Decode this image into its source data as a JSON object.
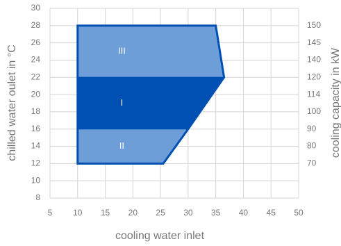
{
  "chart_data": {
    "type": "area",
    "xlabel": "cooling water inlet",
    "ylabel": "chilled water oulet in °C",
    "y2label": "cooling capacity in kW",
    "xlim": [
      5,
      50
    ],
    "xticks": [
      5,
      10,
      15,
      20,
      25,
      30,
      35,
      40,
      45,
      50
    ],
    "ylim": [
      8,
      30
    ],
    "yticks": [
      8,
      10,
      12,
      14,
      16,
      18,
      20,
      22,
      24,
      26,
      28,
      30
    ],
    "y2ticks": [
      70,
      80,
      90,
      100,
      114,
      120,
      140,
      145,
      150
    ],
    "y2tick_y": [
      12,
      14,
      16,
      18,
      20,
      22,
      24,
      26,
      28
    ],
    "grid": true,
    "border_color": "#0050b4",
    "regions": [
      {
        "name": "III",
        "color": "#6e9ed8",
        "x": [
          10,
          10,
          35,
          36.5
        ],
        "y": [
          22,
          28,
          28,
          22
        ],
        "label_x": 18,
        "label_y": 25
      },
      {
        "name": "I",
        "color": "#0050b4",
        "x": [
          10,
          10,
          36.5,
          30
        ],
        "y": [
          16,
          22,
          22,
          16
        ],
        "label_x": 18,
        "label_y": 19
      },
      {
        "name": "II",
        "color": "#6e9ed8",
        "x": [
          10,
          10,
          30,
          25.5
        ],
        "y": [
          12,
          16,
          16,
          12
        ],
        "label_x": 18,
        "label_y": 14
      }
    ]
  }
}
